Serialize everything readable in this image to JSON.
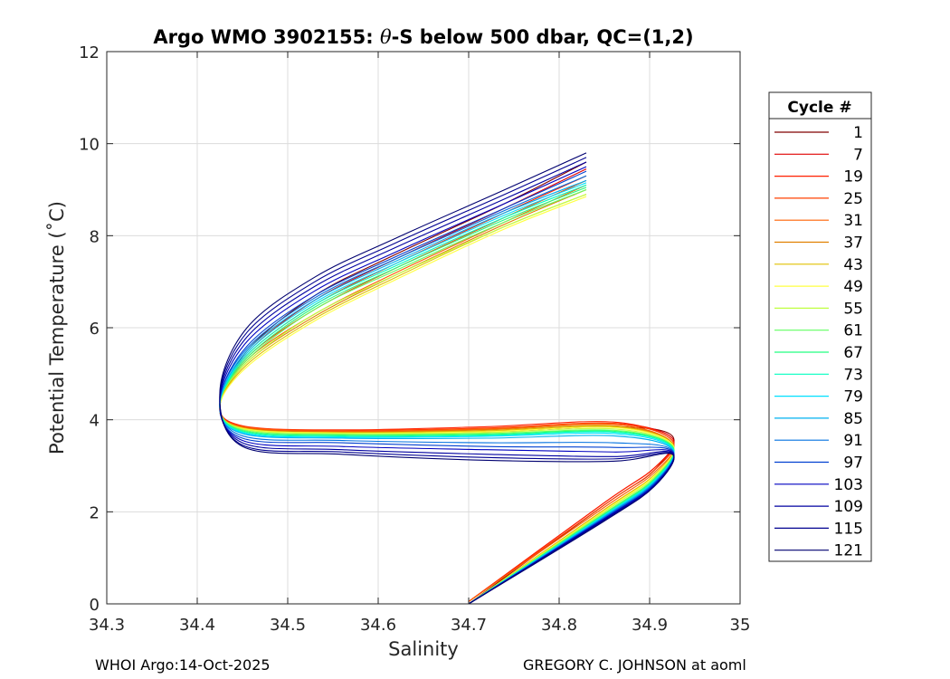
{
  "chart_data": {
    "type": "line",
    "title_prefix": "Argo WMO 3902155: ",
    "title_symbol": "θ",
    "title_suffix": "-S below 500 dbar,  QC=(1,2)",
    "xlabel": "Salinity",
    "ylabel": "Potential Temperature (˚C)",
    "xlim": [
      34.3,
      35.0
    ],
    "ylim": [
      0,
      12
    ],
    "xticks": [
      34.3,
      34.4,
      34.5,
      34.6,
      34.7,
      34.8,
      34.9,
      35.0
    ],
    "xtick_labels": [
      "34.3",
      "34.4",
      "34.5",
      "34.6",
      "34.7",
      "34.8",
      "34.9",
      "35"
    ],
    "yticks": [
      0,
      2,
      4,
      6,
      8,
      10,
      12
    ],
    "ytick_labels": [
      "0",
      "2",
      "4",
      "6",
      "8",
      "10",
      "12"
    ],
    "grid": true,
    "legend_title": "Cycle #",
    "legend_position": "right",
    "series": [
      {
        "name": "1",
        "color": "#800000",
        "s": [
          34.83,
          34.74,
          34.62,
          34.53,
          34.455,
          34.425,
          34.45,
          34.56,
          34.72,
          34.86,
          34.925,
          34.905,
          34.85,
          34.7
        ],
        "t": [
          9.6,
          8.7,
          7.6,
          6.7,
          5.5,
          4.3,
          3.85,
          3.72,
          3.74,
          3.85,
          3.65,
          2.9,
          2.15,
          0.0
        ]
      },
      {
        "name": "7",
        "color": "#e00000",
        "s": [
          34.83,
          34.74,
          34.62,
          34.53,
          34.455,
          34.425,
          34.45,
          34.56,
          34.72,
          34.86,
          34.925,
          34.905,
          34.85,
          34.7
        ],
        "t": [
          9.45,
          8.6,
          7.5,
          6.6,
          5.45,
          4.35,
          3.85,
          3.75,
          3.8,
          3.92,
          3.6,
          2.95,
          2.2,
          0.05
        ]
      },
      {
        "name": "19",
        "color": "#ff2000",
        "s": [
          34.83,
          34.74,
          34.62,
          34.53,
          34.455,
          34.425,
          34.45,
          34.56,
          34.72,
          34.86,
          34.925,
          34.905,
          34.85,
          34.7
        ],
        "t": [
          9.3,
          8.5,
          7.4,
          6.5,
          5.4,
          4.35,
          3.87,
          3.78,
          3.85,
          3.95,
          3.55,
          2.95,
          2.2,
          0.05
        ]
      },
      {
        "name": "25",
        "color": "#ff4000",
        "s": [
          34.83,
          34.74,
          34.62,
          34.53,
          34.455,
          34.425,
          34.45,
          34.56,
          34.72,
          34.86,
          34.925,
          34.905,
          34.85,
          34.7
        ],
        "t": [
          9.2,
          8.4,
          7.3,
          6.4,
          5.35,
          4.3,
          3.86,
          3.77,
          3.82,
          3.92,
          3.55,
          2.9,
          2.15,
          0.05
        ]
      },
      {
        "name": "31",
        "color": "#ff6000",
        "s": [
          34.83,
          34.74,
          34.62,
          34.53,
          34.455,
          34.425,
          34.45,
          34.56,
          34.72,
          34.86,
          34.925,
          34.905,
          34.85,
          34.7
        ],
        "t": [
          9.1,
          8.3,
          7.2,
          6.3,
          5.3,
          4.3,
          3.85,
          3.75,
          3.8,
          3.9,
          3.5,
          2.85,
          2.1,
          0.05
        ]
      },
      {
        "name": "37",
        "color": "#e08000",
        "s": [
          34.83,
          34.74,
          34.62,
          34.53,
          34.455,
          34.425,
          34.45,
          34.56,
          34.72,
          34.86,
          34.925,
          34.905,
          34.85,
          34.7
        ],
        "t": [
          9.0,
          8.25,
          7.15,
          6.25,
          5.25,
          4.3,
          3.83,
          3.73,
          3.78,
          3.87,
          3.5,
          2.8,
          2.05,
          0.0
        ]
      },
      {
        "name": "43",
        "color": "#e0c000",
        "s": [
          34.83,
          34.74,
          34.62,
          34.53,
          34.455,
          34.425,
          34.45,
          34.56,
          34.72,
          34.86,
          34.925,
          34.905,
          34.85,
          34.7
        ],
        "t": [
          8.9,
          8.2,
          7.1,
          6.2,
          5.2,
          4.3,
          3.82,
          3.72,
          3.76,
          3.85,
          3.48,
          2.8,
          2.05,
          0.0
        ]
      },
      {
        "name": "49",
        "color": "#ffff40",
        "s": [
          34.83,
          34.74,
          34.62,
          34.53,
          34.455,
          34.425,
          34.45,
          34.56,
          34.72,
          34.86,
          34.925,
          34.905,
          34.85,
          34.7
        ],
        "t": [
          8.85,
          8.15,
          7.05,
          6.15,
          5.15,
          4.3,
          3.81,
          3.71,
          3.74,
          3.83,
          3.47,
          2.78,
          2.02,
          0.0
        ]
      },
      {
        "name": "55",
        "color": "#c0ff40",
        "s": [
          34.83,
          34.74,
          34.62,
          34.53,
          34.455,
          34.425,
          34.45,
          34.56,
          34.72,
          34.86,
          34.925,
          34.905,
          34.85,
          34.7
        ],
        "t": [
          8.9,
          8.2,
          7.15,
          6.3,
          5.25,
          4.35,
          3.8,
          3.7,
          3.72,
          3.8,
          3.45,
          2.75,
          2.0,
          0.0
        ]
      },
      {
        "name": "61",
        "color": "#60ff60",
        "s": [
          34.83,
          34.74,
          34.62,
          34.53,
          34.455,
          34.425,
          34.45,
          34.56,
          34.72,
          34.86,
          34.925,
          34.905,
          34.85,
          34.7
        ],
        "t": [
          9.0,
          8.3,
          7.25,
          6.4,
          5.3,
          4.35,
          3.78,
          3.68,
          3.7,
          3.77,
          3.43,
          2.72,
          1.97,
          0.0
        ]
      },
      {
        "name": "67",
        "color": "#20ff80",
        "s": [
          34.83,
          34.74,
          34.62,
          34.53,
          34.455,
          34.425,
          34.45,
          34.56,
          34.72,
          34.86,
          34.925,
          34.905,
          34.85,
          34.7
        ],
        "t": [
          9.05,
          8.35,
          7.3,
          6.45,
          5.35,
          4.35,
          3.76,
          3.66,
          3.68,
          3.75,
          3.42,
          2.7,
          1.95,
          0.0
        ]
      },
      {
        "name": "73",
        "color": "#00ffc0",
        "s": [
          34.83,
          34.74,
          34.62,
          34.53,
          34.455,
          34.425,
          34.45,
          34.56,
          34.72,
          34.86,
          34.925,
          34.905,
          34.85,
          34.7
        ],
        "t": [
          9.1,
          8.4,
          7.35,
          6.5,
          5.4,
          4.35,
          3.74,
          3.64,
          3.66,
          3.73,
          3.4,
          2.68,
          1.93,
          0.0
        ]
      },
      {
        "name": "79",
        "color": "#00e0ff",
        "s": [
          34.83,
          34.74,
          34.62,
          34.53,
          34.455,
          34.425,
          34.45,
          34.56,
          34.72,
          34.86,
          34.925,
          34.905,
          34.85,
          34.7
        ],
        "t": [
          9.15,
          8.45,
          7.4,
          6.55,
          5.45,
          4.35,
          3.72,
          3.62,
          3.64,
          3.7,
          3.38,
          2.66,
          1.92,
          0.0
        ]
      },
      {
        "name": "85",
        "color": "#00b0f0",
        "s": [
          34.83,
          34.74,
          34.62,
          34.53,
          34.455,
          34.425,
          34.45,
          34.56,
          34.72,
          34.86,
          34.925,
          34.905,
          34.85,
          34.7
        ],
        "t": [
          9.2,
          8.5,
          7.45,
          6.6,
          5.5,
          4.35,
          3.7,
          3.6,
          3.6,
          3.65,
          3.36,
          2.64,
          1.9,
          0.0
        ]
      },
      {
        "name": "91",
        "color": "#0070e0",
        "s": [
          34.83,
          34.74,
          34.62,
          34.53,
          34.455,
          34.425,
          34.45,
          34.56,
          34.72,
          34.86,
          34.925,
          34.905,
          34.85,
          34.7
        ],
        "t": [
          9.3,
          8.55,
          7.5,
          6.65,
          5.55,
          4.4,
          3.65,
          3.55,
          3.5,
          3.5,
          3.34,
          2.62,
          1.88,
          0.0
        ]
      },
      {
        "name": "97",
        "color": "#0040d0",
        "s": [
          34.83,
          34.74,
          34.62,
          34.53,
          34.455,
          34.425,
          34.45,
          34.56,
          34.72,
          34.86,
          34.925,
          34.905,
          34.85,
          34.7
        ],
        "t": [
          9.4,
          8.6,
          7.55,
          6.7,
          5.6,
          4.4,
          3.6,
          3.5,
          3.42,
          3.4,
          3.32,
          2.6,
          1.86,
          0.0
        ]
      },
      {
        "name": "103",
        "color": "#0000c0",
        "s": [
          34.83,
          34.74,
          34.62,
          34.53,
          34.455,
          34.425,
          34.45,
          34.56,
          34.72,
          34.86,
          34.925,
          34.905,
          34.85,
          34.7
        ],
        "t": [
          9.5,
          8.7,
          7.65,
          6.8,
          5.7,
          4.45,
          3.55,
          3.42,
          3.35,
          3.3,
          3.3,
          2.58,
          1.85,
          0.0
        ]
      },
      {
        "name": "109",
        "color": "#0000a0",
        "s": [
          34.83,
          34.74,
          34.62,
          34.53,
          34.455,
          34.425,
          34.45,
          34.56,
          34.72,
          34.86,
          34.925,
          34.905,
          34.85,
          34.7
        ],
        "t": [
          9.6,
          8.8,
          7.75,
          6.9,
          5.8,
          4.5,
          3.5,
          3.35,
          3.25,
          3.2,
          3.28,
          2.56,
          1.83,
          0.0
        ]
      },
      {
        "name": "115",
        "color": "#000090",
        "s": [
          34.83,
          34.74,
          34.62,
          34.53,
          34.455,
          34.425,
          34.45,
          34.56,
          34.72,
          34.86,
          34.925,
          34.905,
          34.85,
          34.7
        ],
        "t": [
          9.7,
          8.9,
          7.85,
          7.0,
          5.9,
          4.55,
          3.45,
          3.3,
          3.18,
          3.15,
          3.26,
          2.55,
          1.82,
          0.0
        ]
      },
      {
        "name": "121",
        "color": "#000070",
        "s": [
          34.83,
          34.74,
          34.62,
          34.53,
          34.455,
          34.425,
          34.45,
          34.56,
          34.72,
          34.86,
          34.925,
          34.905,
          34.85,
          34.7
        ],
        "t": [
          9.8,
          9.0,
          7.95,
          7.1,
          6.0,
          4.6,
          3.42,
          3.25,
          3.12,
          3.1,
          3.25,
          2.55,
          1.8,
          0.0
        ]
      }
    ]
  },
  "footer": {
    "left": "WHOI Argo:14-Oct-2025",
    "right": "GREGORY C. JOHNSON at aoml"
  }
}
